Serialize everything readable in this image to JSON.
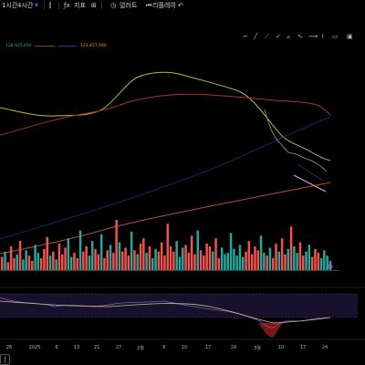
{
  "toolbar": {
    "intervals": [
      "1시간",
      "4시간"
    ],
    "dropdown_icon": "chevron-down-icon",
    "indicators_label": "지표",
    "alert_label": "얼러트",
    "replay_label": "리플레이",
    "undo_icon": "undo-icon"
  },
  "price_labels": [
    "128,925,850",
    "123,457,590"
  ],
  "hidden_label": "hidden-red-legend",
  "x_axis": [
    "26",
    "2025",
    "6",
    "13",
    "21",
    "27",
    "2월",
    "6",
    "10",
    "17",
    "24",
    "3월",
    "10",
    "17",
    "24"
  ],
  "drawing_tools": [
    "cursor-icon",
    "trendline-icon",
    "ray-icon",
    "fib-icon",
    "pattern-icon",
    "wave-icon",
    "path-icon",
    "brush-icon",
    "rectangle-icon",
    "text-icon"
  ],
  "colors": {
    "background": "#000000",
    "accent": "#2962ff",
    "up": "#26a69a",
    "down": "#ef5350",
    "ma_yellow": "#c5c53f",
    "ma_red": "#b03a3a",
    "ma_orange": "#b5532a",
    "ma_blue": "#1f2f7a",
    "oscillator": "#7e57c2"
  }
}
